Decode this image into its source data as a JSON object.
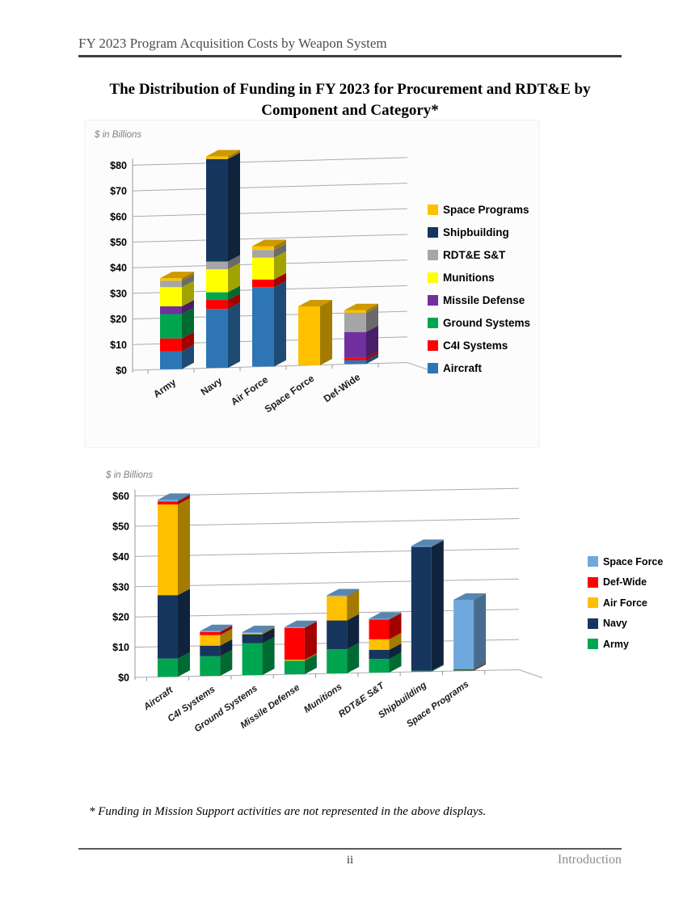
{
  "page": {
    "running_header": "FY 2023 Program Acquisition Costs by Weapon System",
    "title_line1": "The Distribution of Funding in FY 2023 for Procurement and RDT&E by",
    "title_line2": "Component and Category*",
    "footnote": "* Funding in Mission Support activities are not represented in the above displays.",
    "page_number": "ii",
    "footer_right": "Introduction"
  },
  "colors": {
    "aircraft": "#2E75B6",
    "c4i_systems": "#FF0000",
    "ground_systems": "#00A550",
    "missile_defense": "#7030A0",
    "munitions": "#FFFF00",
    "rdte_st": "#A6A6A6",
    "shipbuilding": "#17365D",
    "space_programs": "#FFC000",
    "army": "#00A550",
    "navy": "#17365D",
    "air_force": "#FFC000",
    "def_wide": "#FF0000",
    "space_force": "#6FA8DC"
  },
  "chart_data": [
    {
      "type": "bar",
      "stacked": true,
      "three_d": true,
      "units_label": "$ in Billions",
      "categories": [
        "Army",
        "Navy",
        "Air Force",
        "Space Force",
        "Def-Wide"
      ],
      "series": [
        {
          "name": "Aircraft",
          "color": "#2E75B6",
          "values": [
            7,
            23,
            31,
            0,
            1.5
          ]
        },
        {
          "name": "C4I Systems",
          "color": "#FF0000",
          "values": [
            5,
            3.5,
            3,
            0,
            1
          ]
        },
        {
          "name": "Ground Systems",
          "color": "#00A550",
          "values": [
            9.5,
            3,
            0,
            0,
            0
          ]
        },
        {
          "name": "Missile Defense",
          "color": "#7030A0",
          "values": [
            3,
            0,
            0,
            0,
            10
          ]
        },
        {
          "name": "Munitions",
          "color": "#FFFF00",
          "values": [
            7.5,
            9,
            8.5,
            0,
            0
          ]
        },
        {
          "name": "RDT&E S&T",
          "color": "#A6A6A6",
          "values": [
            2.5,
            3,
            3,
            0,
            7.5
          ]
        },
        {
          "name": "Shipbuilding",
          "color": "#17365D",
          "values": [
            0,
            40,
            0,
            0,
            0
          ]
        },
        {
          "name": "Space Programs",
          "color": "#FFC000",
          "values": [
            1,
            1,
            1.5,
            23,
            1
          ]
        }
      ],
      "legend_position": "right",
      "ylim": [
        0,
        80
      ],
      "ytick_step": 10,
      "ytick_prefix": "$",
      "grid": true
    },
    {
      "type": "bar",
      "stacked": true,
      "three_d": true,
      "units_label": "$ in Billions",
      "categories": [
        "Aircraft",
        "C4I Systems",
        "Ground Systems",
        "Missile Defense",
        "Munitions",
        "RDT&E S&T",
        "Shipbuilding",
        "Space Programs"
      ],
      "series": [
        {
          "name": "Army",
          "color": "#00A550",
          "values": [
            6,
            6.5,
            10.5,
            4.5,
            8,
            4.5,
            0.3,
            0.2
          ]
        },
        {
          "name": "Navy",
          "color": "#17365D",
          "values": [
            21,
            3.5,
            3,
            0,
            9.5,
            3,
            41,
            0
          ]
        },
        {
          "name": "Air Force",
          "color": "#FFC000",
          "values": [
            30,
            3.5,
            0.4,
            0.3,
            8,
            3.5,
            0,
            0
          ]
        },
        {
          "name": "Def-Wide",
          "color": "#FF0000",
          "values": [
            1,
            1,
            0,
            10.5,
            0,
            6.5,
            0,
            0.3
          ]
        },
        {
          "name": "Space Force",
          "color": "#6FA8DC",
          "values": [
            0.5,
            0.3,
            0.3,
            0.3,
            0.3,
            0.3,
            0.3,
            23
          ]
        }
      ],
      "legend_position": "right",
      "ylim": [
        0,
        60
      ],
      "ytick_step": 10,
      "ytick_prefix": "$",
      "grid": true
    }
  ]
}
